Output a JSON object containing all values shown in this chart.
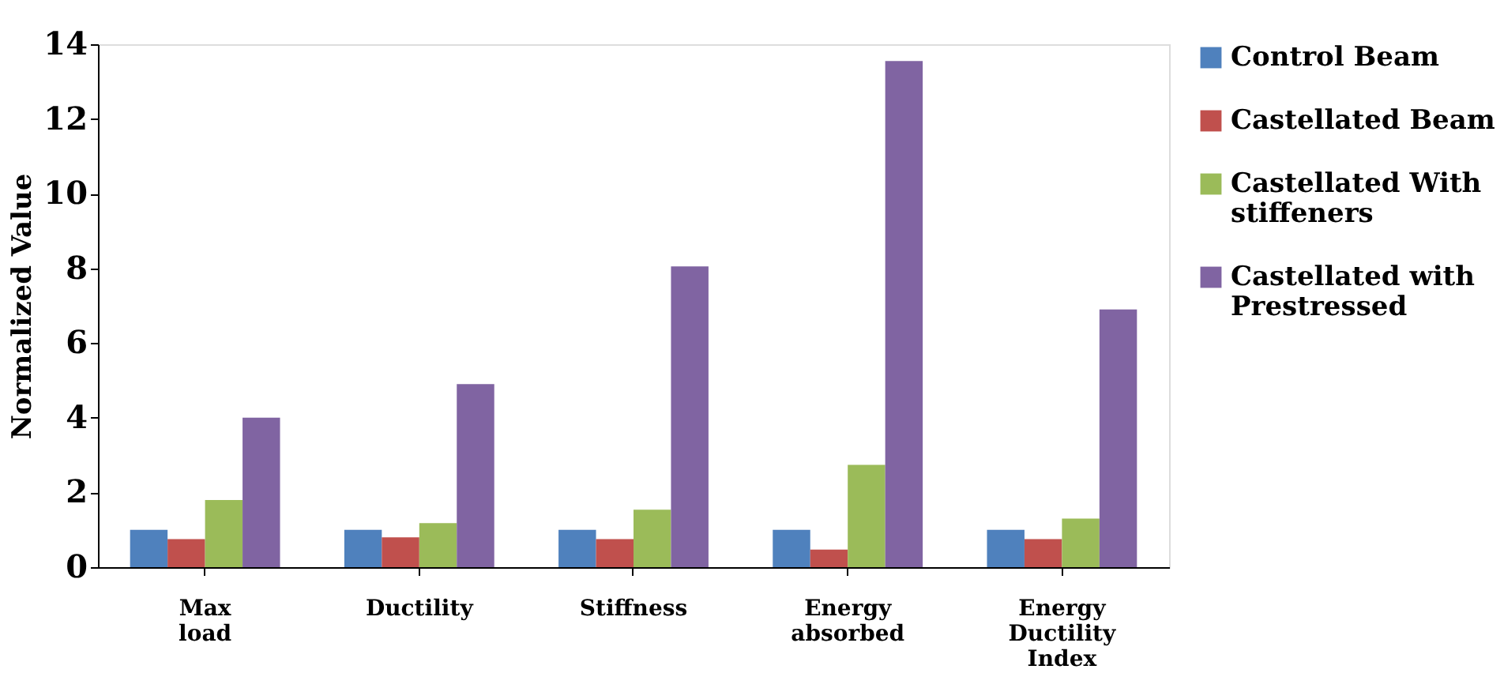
{
  "chart_data": {
    "type": "bar",
    "ylabel": "Normalized Value",
    "categories": [
      "Max load",
      "Ductility",
      "Stiffness",
      "Energy absorbed",
      "Energy Ductility Index"
    ],
    "series": [
      {
        "name": "Control Beam",
        "color": "#4f81bd",
        "values": [
          1,
          1,
          1,
          1,
          1
        ]
      },
      {
        "name": "Castellated Beam",
        "color": "#c0504d",
        "values": [
          0.75,
          0.8,
          0.75,
          0.47,
          0.75
        ]
      },
      {
        "name": "Castellated With stiffeners",
        "color": "#9bbb59",
        "values": [
          1.8,
          1.18,
          1.54,
          2.74,
          1.3
        ]
      },
      {
        "name": "Castellated with Prestressed",
        "color": "#8064a2",
        "values": [
          4.0,
          4.9,
          8.05,
          13.55,
          6.9
        ]
      }
    ],
    "ylim": [
      0,
      14
    ],
    "yticks": [
      0,
      2,
      4,
      6,
      8,
      10,
      12,
      14
    ],
    "grid": false,
    "legend": "right"
  }
}
